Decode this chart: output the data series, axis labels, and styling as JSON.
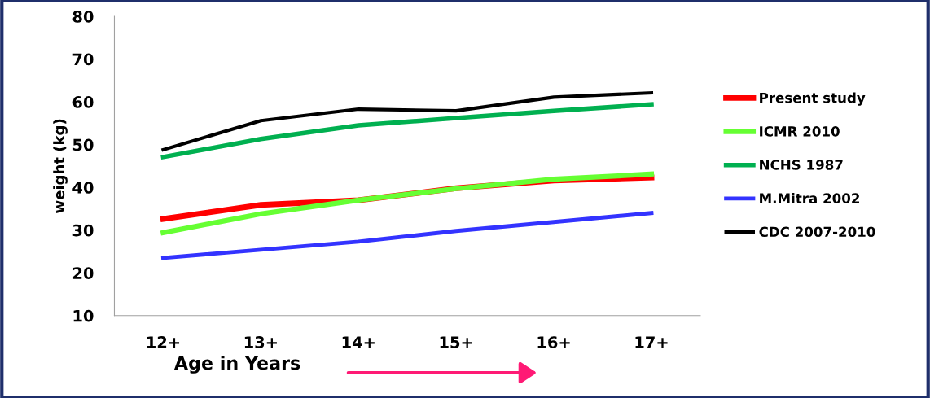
{
  "chart_data": {
    "type": "line",
    "xlabel": "Age in Years",
    "ylabel": "weight (kg)",
    "categories": [
      "12+",
      "13+",
      "14+",
      "15+",
      "16+",
      "17+"
    ],
    "series": [
      {
        "name": "Present study",
        "color": "#ff0000",
        "values": [
          32.6,
          35.9,
          37.0,
          39.8,
          41.6,
          42.3
        ]
      },
      {
        "name": "ICMR 2010",
        "color": "#66ff33",
        "values": [
          29.4,
          33.8,
          37.0,
          39.7,
          41.9,
          43.1
        ]
      },
      {
        "name": "NCHS 1987",
        "color": "#00b050",
        "values": [
          47.1,
          51.3,
          54.5,
          56.2,
          57.9,
          59.4
        ]
      },
      {
        "name": "M.Mitra 2002",
        "color": "#3333ff",
        "values": [
          23.5,
          25.4,
          27.3,
          29.8,
          31.9,
          34.0
        ]
      },
      {
        "name": "CDC 2007-2010",
        "color": "#000000",
        "values": [
          48.8,
          55.6,
          58.3,
          57.9,
          61.1,
          62.1
        ]
      }
    ],
    "ylim": [
      10,
      80
    ],
    "yticks": [
      10,
      20,
      30,
      40,
      50,
      60,
      70,
      80
    ],
    "grid": false,
    "legend": "right",
    "marker": "none",
    "line_style": "solid"
  }
}
